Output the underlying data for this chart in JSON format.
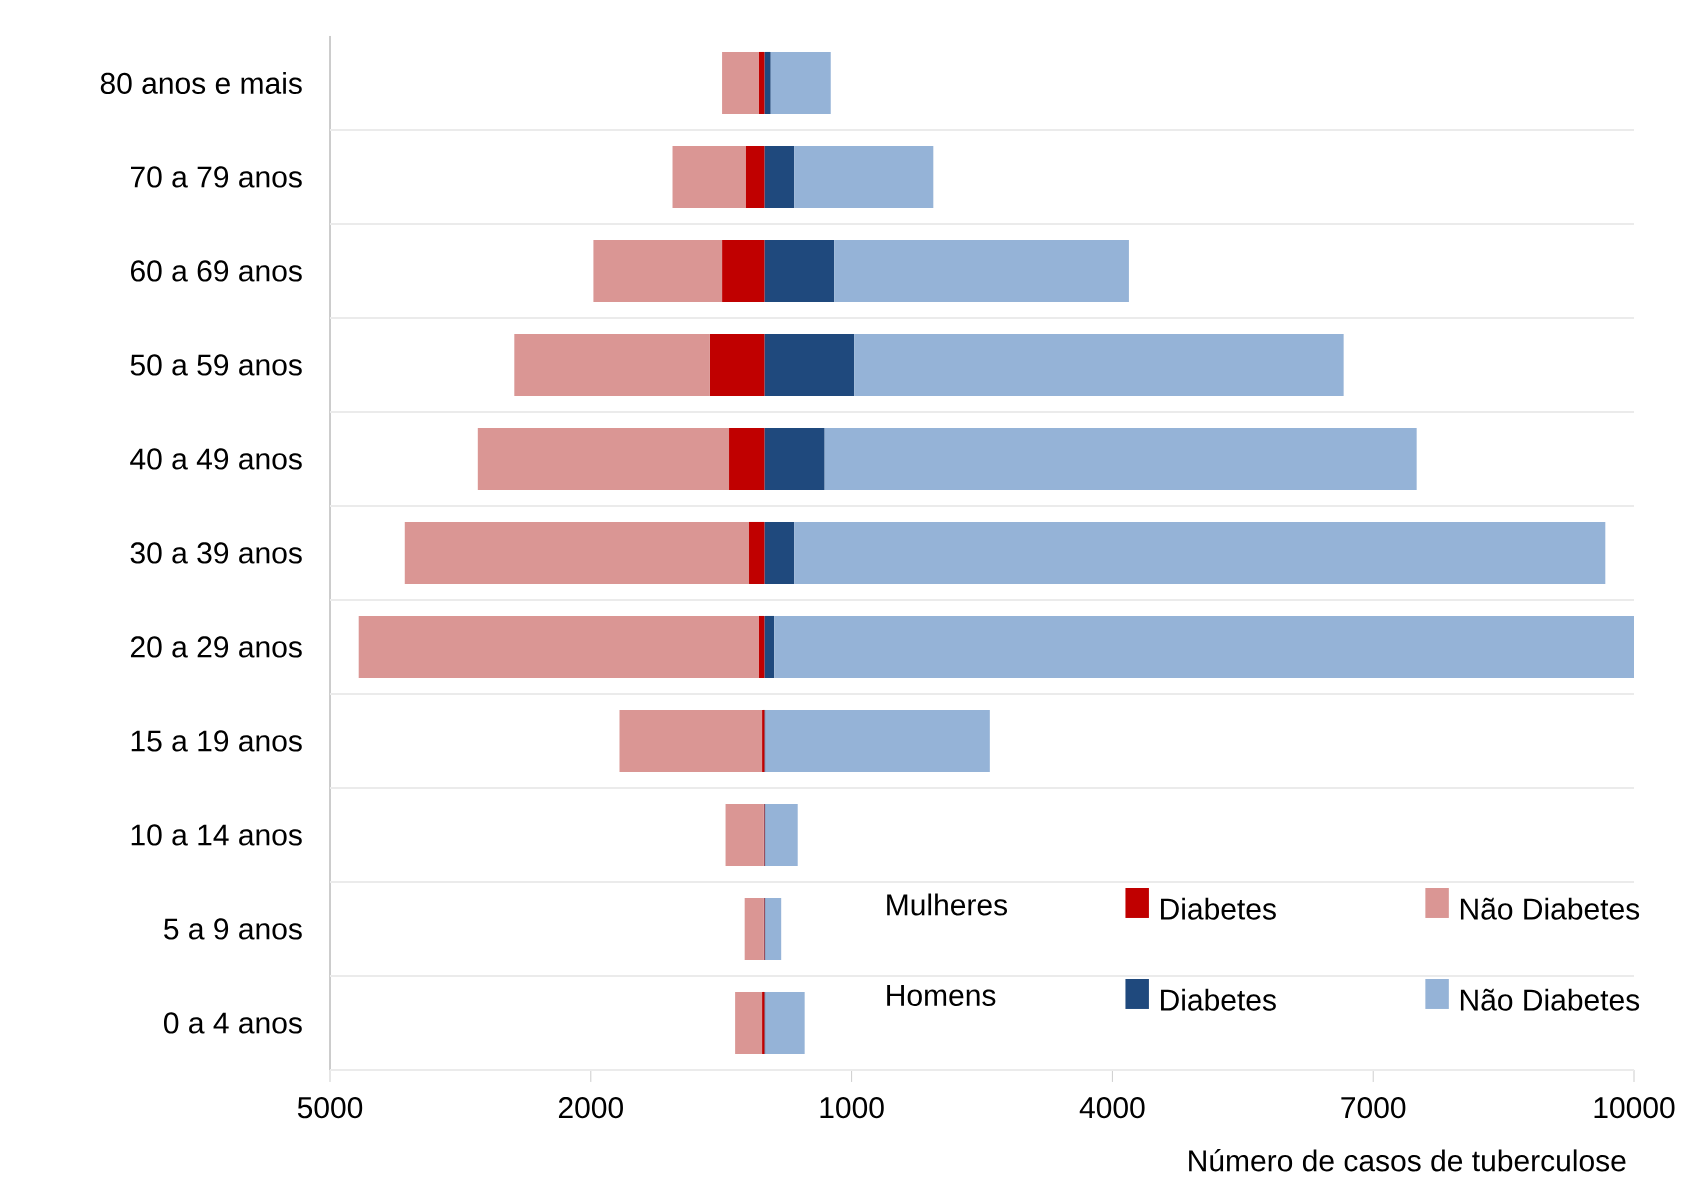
{
  "chart_data": {
    "type": "bar",
    "orientation": "horizontal",
    "stacked": true,
    "xlabel": "Número  de casos de tuberculose",
    "categories": [
      "80 anos e mais",
      "70 a 79 anos",
      "60 a 69 anos",
      "50 a 59 anos",
      "40 a 49 anos",
      "30 a 39 anos",
      "20 a 29 anos",
      "15 a 19 anos",
      "10 a 14 anos",
      "5 a 9 anos",
      "0 a 4 anos"
    ],
    "series": [
      {
        "name": "Diabetes",
        "color": "#c00000",
        "values": [
          -70,
          -220,
          -490,
          -630,
          -410,
          -180,
          -70,
          -30,
          -10,
          -10,
          -30
        ]
      },
      {
        "name": "Não Diabetes",
        "color": "#da9694",
        "values": [
          -420,
          -840,
          -1480,
          -2250,
          -2890,
          -3960,
          -4600,
          -1640,
          -440,
          -220,
          -310
        ]
      },
      {
        "name": "Diabetes",
        "color": "#1f497d",
        "values": [
          70,
          340,
          800,
          1030,
          690,
          340,
          110,
          10,
          10,
          10,
          10
        ]
      },
      {
        "name": "Não Diabetes",
        "color": "#95b3d7",
        "values": [
          690,
          1600,
          3390,
          5630,
          6810,
          9330,
          9890,
          2580,
          370,
          180,
          450
        ]
      }
    ],
    "xlim": [
      -5000,
      10000
    ],
    "xticks": [
      {
        "value": -5000,
        "label": "5000"
      },
      {
        "value": -2000,
        "label": "2000"
      },
      {
        "value": 1000,
        "label": "1000"
      },
      4000,
      7000,
      10000
    ],
    "grid": "y",
    "legend": "bottom right",
    "annotations": [
      "Mulheres",
      "Homens"
    ]
  }
}
